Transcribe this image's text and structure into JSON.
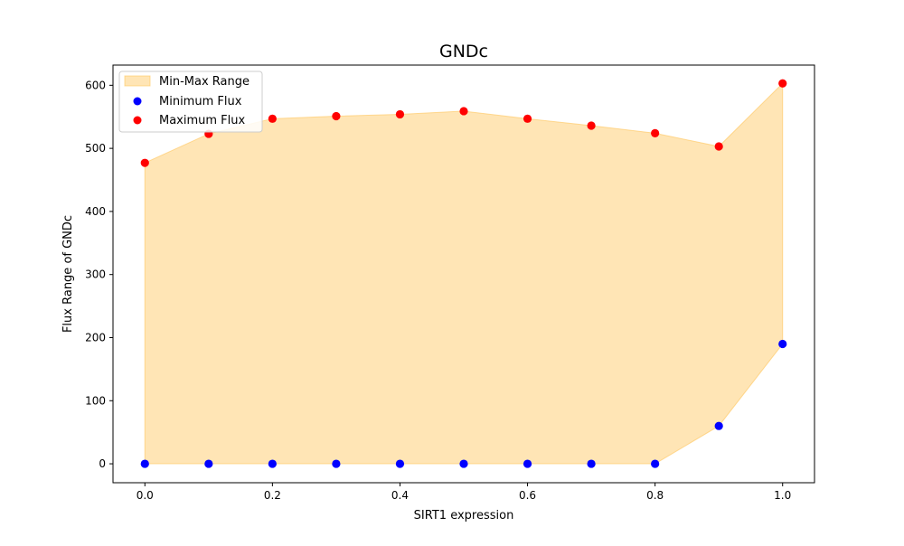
{
  "chart_data": {
    "type": "scatter",
    "title": "GNDc",
    "xlabel": "SIRT1 expression",
    "ylabel": "Flux Range of GNDc",
    "xlim": [
      -0.05,
      1.05
    ],
    "ylim": [
      -30,
      632
    ],
    "x_ticks": [
      0.0,
      0.1,
      0.2,
      0.3,
      0.4,
      0.5,
      0.6,
      0.7,
      0.8,
      0.9,
      1.0
    ],
    "x_tick_labels": [
      "0.0",
      "0.2",
      "0.4",
      "0.6",
      "0.8",
      "1.0"
    ],
    "x_tick_values": [
      0.0,
      0.2,
      0.4,
      0.6,
      0.8,
      1.0
    ],
    "y_tick_values": [
      0,
      100,
      200,
      300,
      400,
      500,
      600
    ],
    "y_tick_labels": [
      "0",
      "100",
      "200",
      "300",
      "400",
      "500",
      "600"
    ],
    "grid": false,
    "legend_position": "top-left",
    "x": [
      0.0,
      0.1,
      0.2,
      0.3,
      0.4,
      0.5,
      0.6,
      0.7,
      0.8,
      0.9,
      1.0
    ],
    "series": [
      {
        "name": "Min-Max Range",
        "kind": "area",
        "color": "#ffc55a"
      },
      {
        "name": "Minimum Flux",
        "kind": "scatter",
        "color": "#0000ff",
        "values": [
          0,
          0,
          0,
          0,
          0,
          0,
          0,
          0,
          0,
          60,
          190
        ]
      },
      {
        "name": "Maximum Flux",
        "kind": "scatter",
        "color": "#ff0000",
        "values": [
          477,
          523,
          547,
          551,
          554,
          559,
          547,
          536,
          524,
          503,
          603
        ]
      }
    ]
  }
}
